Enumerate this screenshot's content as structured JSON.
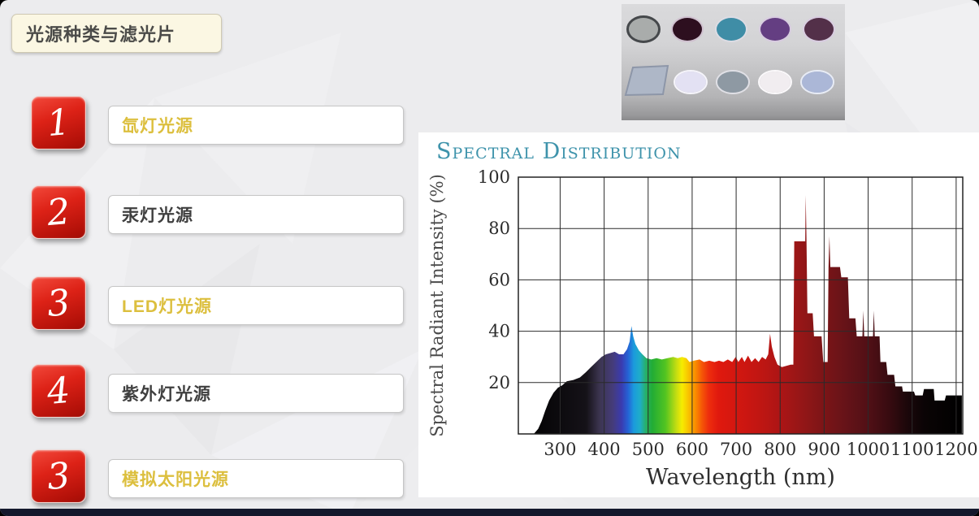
{
  "slide": {
    "title": "光源种类与滤光片",
    "list": [
      {
        "num": "1",
        "label": "氙灯光源",
        "highlight": true
      },
      {
        "num": "2",
        "label": "汞灯光源",
        "highlight": false
      },
      {
        "num": "3",
        "label": "LED灯光源",
        "highlight": true
      },
      {
        "num": "4",
        "label": "紫外灯光源",
        "highlight": false
      },
      {
        "num": "3",
        "label": "模拟太阳光源",
        "highlight": true
      }
    ],
    "colors": {
      "accent_red": "#cf1711",
      "highlight_yellow": "#dcbf3e",
      "dark_text": "#3f3f3f",
      "title_teal": "#3e93ab",
      "bottom_bar_navy": "#14182c",
      "slide_background": "#ececee"
    }
  },
  "filters_image": {
    "row1": [
      {
        "name": "gray-lens",
        "fill": "#a9acab",
        "rim": "#45484b",
        "rim_width": 4
      },
      {
        "name": "dark-maroon-filter",
        "fill": "#2d0f1f",
        "rim": "#cfc0cf",
        "rim_width": 2
      },
      {
        "name": "teal-filter",
        "fill": "#3f8da6",
        "rim": "#dcdce4",
        "rim_width": 2
      },
      {
        "name": "purple-filter",
        "fill": "#643e82",
        "rim": "#d8cce0",
        "rim_width": 2
      },
      {
        "name": "plum-filter",
        "fill": "#533049",
        "rim": "#d8cce0",
        "rim_width": 2
      }
    ],
    "row2": [
      {
        "name": "glass-plate",
        "fill": "#aeb7c7",
        "rim": "#8d96a8",
        "rim_width": 2
      },
      {
        "name": "pale-lavender-filter",
        "fill": "#e3e1f3",
        "rim": "#f6f5fb",
        "rim_width": 2
      },
      {
        "name": "blue-gray-filter",
        "fill": "#8e99a3",
        "rim": "#e0e0e6",
        "rim_width": 2
      },
      {
        "name": "white-filter",
        "fill": "#f1edf0",
        "rim": "#fbf9fb",
        "rim_width": 2
      },
      {
        "name": "periwinkle-filter",
        "fill": "#abb7d7",
        "rim": "#e8ecf6",
        "rim_width": 2
      }
    ]
  },
  "chart_data": {
    "type": "area",
    "title": "Spectral Distribution",
    "xlabel": "Wavelength (nm)",
    "ylabel": "Spectral Radiant Intensity (%)",
    "xlim": [
      205,
      1215
    ],
    "ylim": [
      0,
      100
    ],
    "xticks": [
      300,
      400,
      500,
      600,
      700,
      800,
      900,
      1000,
      1100,
      1200
    ],
    "yticks": [
      20,
      40,
      60,
      80,
      100
    ],
    "grid": true,
    "legend": "none",
    "series": [
      {
        "name": "xenon-lamp-spectral-radiant-intensity",
        "points": [
          [
            205,
            0
          ],
          [
            240,
            0
          ],
          [
            250,
            2
          ],
          [
            258,
            5
          ],
          [
            266,
            9
          ],
          [
            275,
            13
          ],
          [
            285,
            16
          ],
          [
            295,
            18
          ],
          [
            305,
            19
          ],
          [
            315,
            20.5
          ],
          [
            330,
            21
          ],
          [
            345,
            22
          ],
          [
            358,
            24
          ],
          [
            370,
            26
          ],
          [
            382,
            28
          ],
          [
            394,
            30
          ],
          [
            404,
            31
          ],
          [
            414,
            31.5
          ],
          [
            424,
            32
          ],
          [
            434,
            31
          ],
          [
            444,
            31
          ],
          [
            452,
            33
          ],
          [
            458,
            36
          ],
          [
            462,
            42
          ],
          [
            466,
            38
          ],
          [
            471,
            35
          ],
          [
            479,
            32.5
          ],
          [
            487,
            31
          ],
          [
            496,
            29.5
          ],
          [
            507,
            29
          ],
          [
            519,
            29.5
          ],
          [
            531,
            29
          ],
          [
            544,
            29.5
          ],
          [
            557,
            30
          ],
          [
            567,
            29.5
          ],
          [
            577,
            30
          ],
          [
            587,
            29.5
          ],
          [
            594,
            28
          ],
          [
            604,
            28.5
          ],
          [
            617,
            29
          ],
          [
            627,
            28
          ],
          [
            639,
            28.5
          ],
          [
            651,
            28
          ],
          [
            661,
            28.5
          ],
          [
            671,
            28
          ],
          [
            681,
            29
          ],
          [
            691,
            28
          ],
          [
            699,
            30
          ],
          [
            705,
            28
          ],
          [
            713,
            30
          ],
          [
            719,
            28
          ],
          [
            727,
            30.5
          ],
          [
            735,
            28
          ],
          [
            743,
            29.5
          ],
          [
            751,
            28
          ],
          [
            759,
            30
          ],
          [
            767,
            29
          ],
          [
            773,
            31
          ],
          [
            777,
            39
          ],
          [
            781,
            34
          ],
          [
            787,
            30
          ],
          [
            794,
            27
          ],
          [
            804,
            26
          ],
          [
            814,
            26.5
          ],
          [
            824,
            27
          ],
          [
            830,
            27
          ],
          [
            832,
            75
          ],
          [
            857,
            75
          ],
          [
            858,
            93
          ],
          [
            860,
            75
          ],
          [
            862,
            47
          ],
          [
            874,
            47
          ],
          [
            877,
            38
          ],
          [
            894,
            38
          ],
          [
            898,
            28
          ],
          [
            908,
            28
          ],
          [
            910,
            65
          ],
          [
            912,
            77
          ],
          [
            914,
            65
          ],
          [
            936,
            65
          ],
          [
            939,
            61
          ],
          [
            954,
            61
          ],
          [
            957,
            45
          ],
          [
            971,
            45
          ],
          [
            974,
            38
          ],
          [
            987,
            38
          ],
          [
            989,
            48
          ],
          [
            991,
            38
          ],
          [
            1011,
            38
          ],
          [
            1013,
            48
          ],
          [
            1015,
            38
          ],
          [
            1026,
            38
          ],
          [
            1028,
            28
          ],
          [
            1041,
            28
          ],
          [
            1044,
            23
          ],
          [
            1059,
            23
          ],
          [
            1062,
            18.5
          ],
          [
            1077,
            18.5
          ],
          [
            1079,
            16.5
          ],
          [
            1104,
            16.5
          ],
          [
            1107,
            15
          ],
          [
            1124,
            15
          ],
          [
            1127,
            17.5
          ],
          [
            1149,
            17.5
          ],
          [
            1151,
            13
          ],
          [
            1174,
            13
          ],
          [
            1177,
            15
          ],
          [
            1213,
            15
          ],
          [
            1213,
            0
          ]
        ]
      }
    ],
    "spectrum_gradient": [
      [
        205,
        "#000000"
      ],
      [
        360,
        "#151218"
      ],
      [
        390,
        "#3c3550"
      ],
      [
        420,
        "#453c7a"
      ],
      [
        440,
        "#3a3bb0"
      ],
      [
        455,
        "#2563d6"
      ],
      [
        468,
        "#1b9bdc"
      ],
      [
        482,
        "#1fadc8"
      ],
      [
        495,
        "#27b06a"
      ],
      [
        510,
        "#22ac35"
      ],
      [
        540,
        "#52c421"
      ],
      [
        565,
        "#c4dd12"
      ],
      [
        578,
        "#f6ec00"
      ],
      [
        592,
        "#f9c300"
      ],
      [
        608,
        "#f98e00"
      ],
      [
        622,
        "#f55a06"
      ],
      [
        638,
        "#ee2e0d"
      ],
      [
        660,
        "#e0190e"
      ],
      [
        700,
        "#d31710"
      ],
      [
        750,
        "#c21612"
      ],
      [
        800,
        "#ad1515"
      ],
      [
        850,
        "#951617"
      ],
      [
        900,
        "#7c1517"
      ],
      [
        950,
        "#661318"
      ],
      [
        1000,
        "#521016"
      ],
      [
        1050,
        "#370b10"
      ],
      [
        1090,
        "#1c070a"
      ],
      [
        1130,
        "#0a0405"
      ],
      [
        1215,
        "#000000"
      ]
    ]
  }
}
